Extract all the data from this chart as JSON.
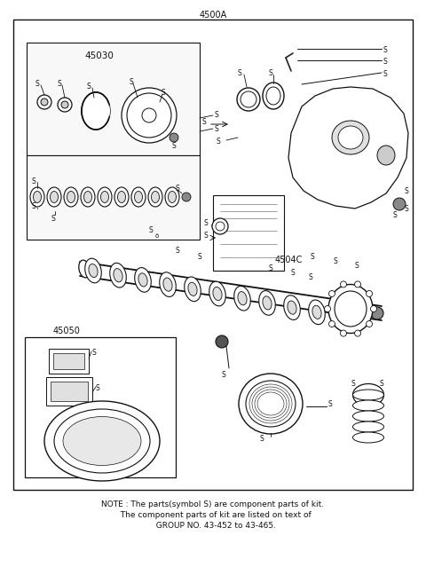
{
  "title": "4500A",
  "bg_color": "#ffffff",
  "text_color": "#111111",
  "fig_width": 4.8,
  "fig_height": 6.57,
  "dpi": 100,
  "note_line1": "NOTE : The parts(symbol S) are component parts of kit.",
  "note_line2": "  The component parts of kit are listed on text of",
  "note_line3": "  GROUP NO. 43-452 to 43-465.",
  "label_45030": "45030",
  "label_45040": "4504C",
  "label_45050": "45050",
  "label_title": "4500A"
}
